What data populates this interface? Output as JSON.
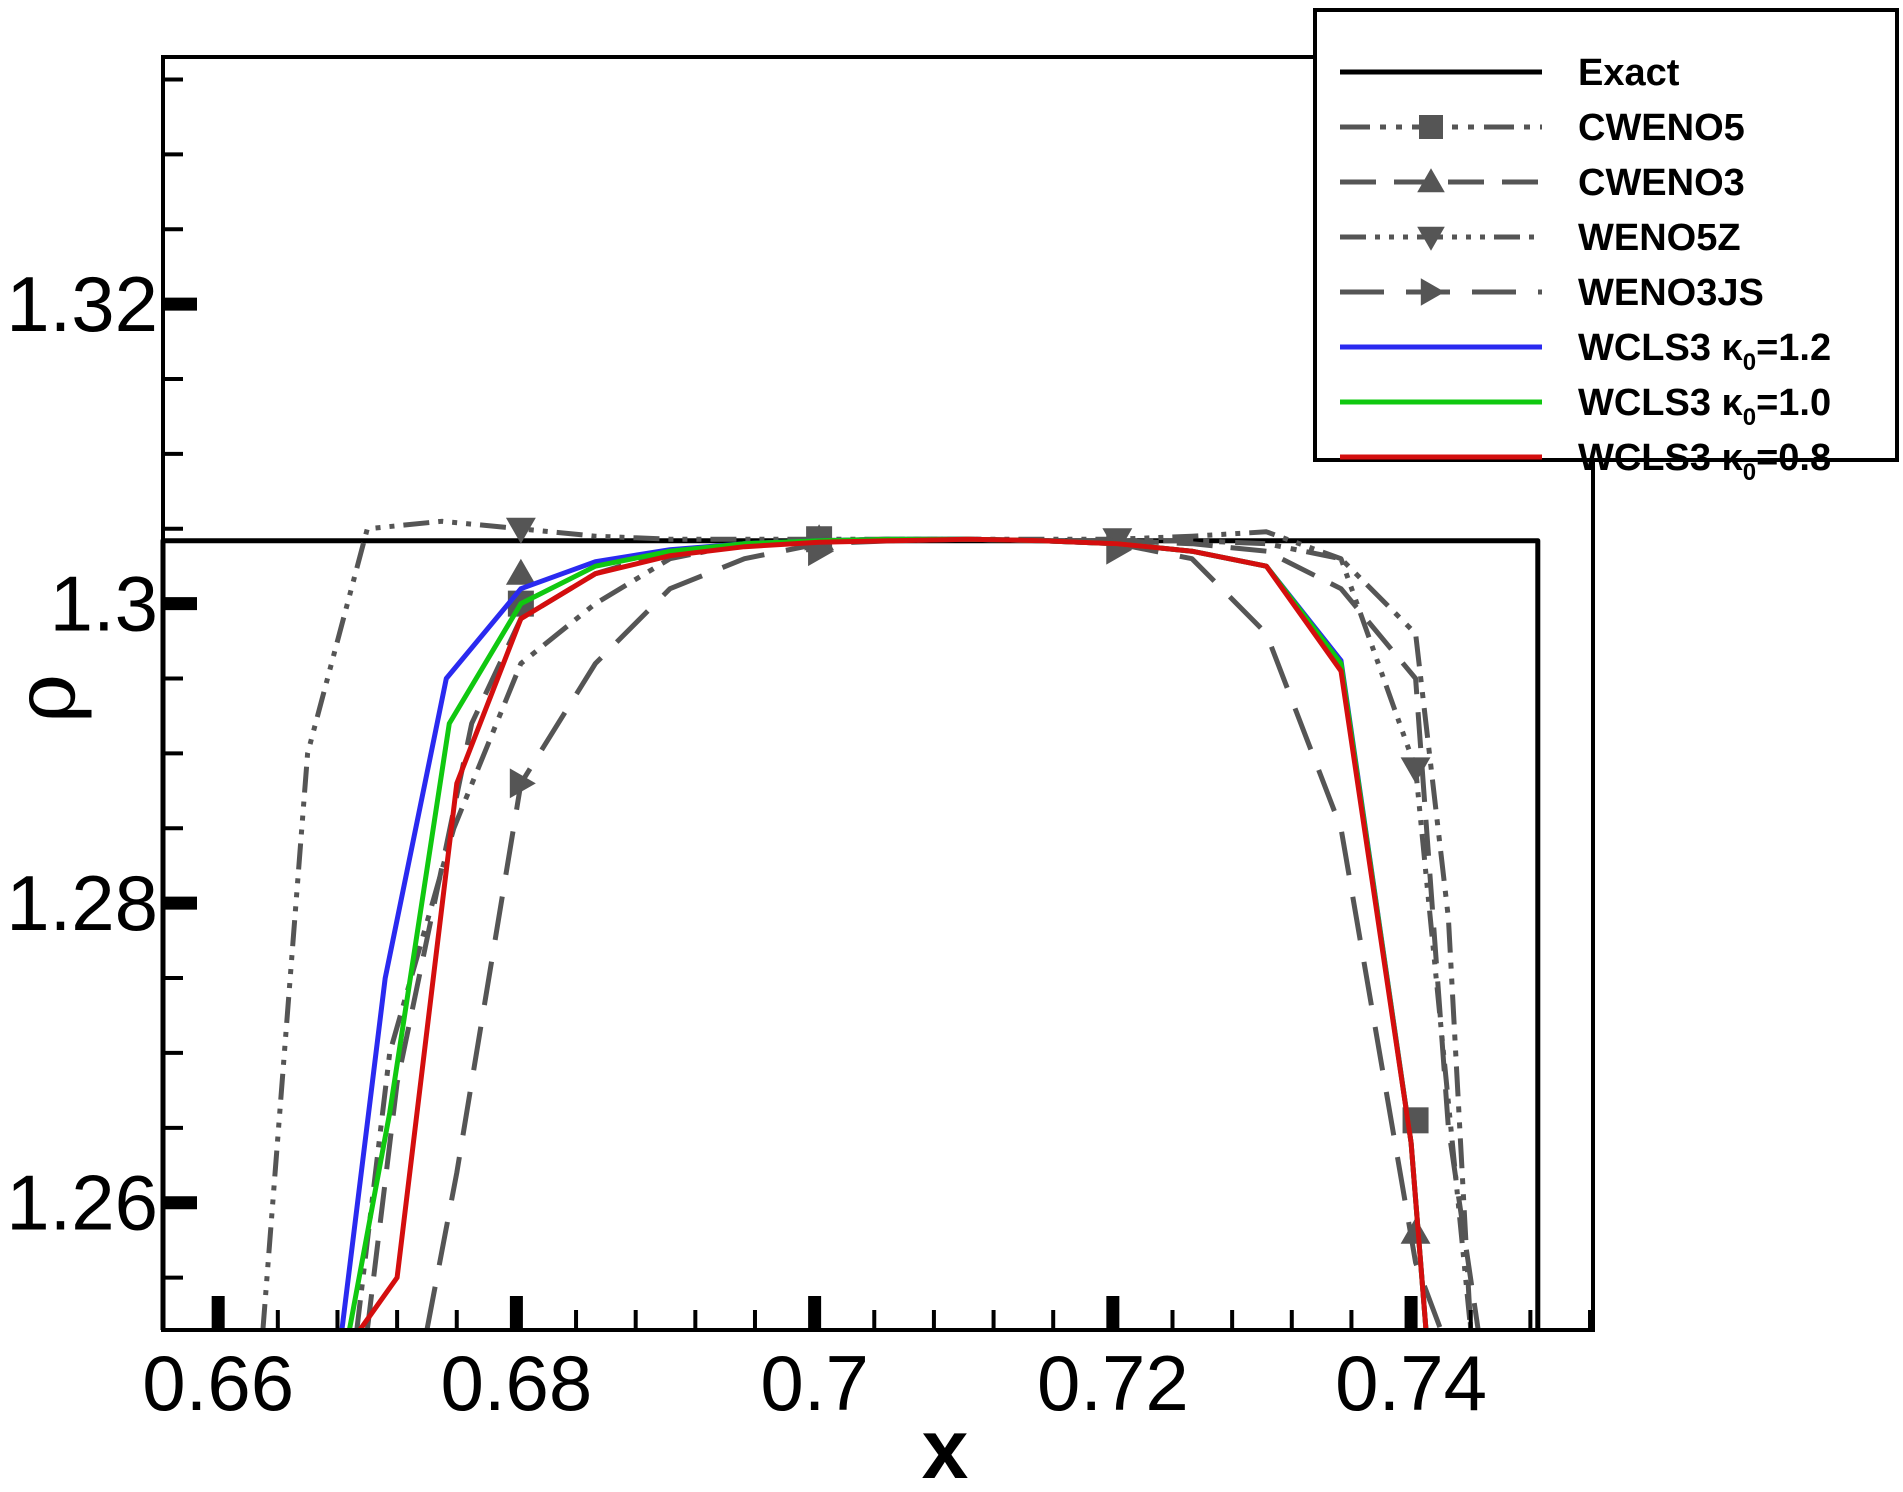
{
  "chart_data": {
    "type": "line",
    "title": "",
    "xlabel": "x",
    "ylabel": "ρ",
    "xlim": [
      0.6563,
      0.7522
    ],
    "ylim": [
      1.2515,
      1.3365
    ],
    "x_ticks": [
      0.66,
      0.68,
      0.7,
      0.72,
      0.74
    ],
    "x_tick_labels": [
      "0.66",
      "0.68",
      "0.7",
      "0.72",
      "0.74"
    ],
    "y_ticks": [
      1.26,
      1.28,
      1.3,
      1.32
    ],
    "y_tick_labels": [
      "1.26",
      "1.28",
      "1.3",
      "1.32"
    ],
    "legend_position": "top-right",
    "series": [
      {
        "name": "Exact",
        "label_main": "Exact",
        "label_sub": "",
        "label_tail": "",
        "color": "#000000",
        "dash": "solid",
        "marker": "none",
        "x": [
          0.6563,
          0.6563,
          0.7485,
          0.7485
        ],
        "y": [
          1.2515,
          1.3042,
          1.3042,
          1.2515
        ]
      },
      {
        "name": "CWENO5",
        "label_main": "CWENO5",
        "label_sub": "",
        "label_tail": "",
        "color": "#555555",
        "dash": "dashdotdot",
        "marker": "square",
        "x": [
          0.6693,
          0.6715,
          0.6758,
          0.6803,
          0.6853,
          0.6903,
          0.6953,
          0.7003,
          0.7053,
          0.7103,
          0.7153,
          0.7203,
          0.7253,
          0.7303,
          0.7353,
          0.7403,
          0.7425,
          0.744
        ],
        "y": [
          1.2515,
          1.27,
          1.285,
          1.296,
          1.3,
          1.303,
          1.304,
          1.3042,
          1.3043,
          1.3043,
          1.3042,
          1.3042,
          1.3042,
          1.304,
          1.303,
          1.298,
          1.279,
          1.2515
        ],
        "marker_x": [
          0.6803,
          0.7003,
          0.7403
        ],
        "marker_y": [
          1.3,
          1.3043,
          1.2655
        ]
      },
      {
        "name": "CWENO3",
        "label_main": "CWENO3",
        "label_sub": "",
        "label_tail": "",
        "color": "#555555",
        "dash": "dash",
        "marker": "triangle-up",
        "x": [
          0.67,
          0.672,
          0.677,
          0.6803,
          0.6853,
          0.6903,
          0.6953,
          0.7003,
          0.7053,
          0.7103,
          0.7153,
          0.7203,
          0.7253,
          0.7303,
          0.7353,
          0.7403,
          0.7425,
          0.7445
        ],
        "y": [
          1.2515,
          1.268,
          1.292,
          1.299,
          1.302,
          1.3035,
          1.304,
          1.3042,
          1.3043,
          1.3043,
          1.3042,
          1.3042,
          1.304,
          1.3035,
          1.301,
          1.295,
          1.265,
          1.2515
        ],
        "marker_x": [
          0.6803,
          0.7003,
          0.7403
        ],
        "marker_y": [
          1.302,
          1.3043,
          1.258
        ]
      },
      {
        "name": "WENO5Z",
        "label_main": "WENO5Z",
        "label_sub": "",
        "label_tail": "",
        "color": "#555555",
        "dash": "dashdotdotdot",
        "marker": "triangle-down",
        "x": [
          0.663,
          0.666,
          0.67,
          0.675,
          0.6803,
          0.6853,
          0.6903,
          0.6953,
          0.7003,
          0.7053,
          0.7103,
          0.7153,
          0.7203,
          0.7253,
          0.7303,
          0.7353,
          0.7403,
          0.744
        ],
        "y": [
          1.2515,
          1.29,
          1.305,
          1.3055,
          1.305,
          1.3045,
          1.3043,
          1.3043,
          1.3043,
          1.3043,
          1.3043,
          1.3043,
          1.3043,
          1.3045,
          1.3048,
          1.303,
          1.289,
          1.2515
        ],
        "marker_x": [
          0.6803,
          0.7203,
          0.7403
        ],
        "marker_y": [
          1.305,
          1.3043,
          1.289
        ]
      },
      {
        "name": "WENO3JS",
        "label_main": "WENO3JS",
        "label_sub": "",
        "label_tail": "",
        "color": "#555555",
        "dash": "longdash",
        "marker": "triangle-right",
        "x": [
          0.674,
          0.676,
          0.6803,
          0.6853,
          0.6903,
          0.6953,
          0.7003,
          0.7053,
          0.7103,
          0.7153,
          0.7203,
          0.7253,
          0.7303,
          0.7353,
          0.7403,
          0.742
        ],
        "y": [
          1.2515,
          1.262,
          1.288,
          1.296,
          1.301,
          1.303,
          1.304,
          1.3042,
          1.3043,
          1.3042,
          1.304,
          1.303,
          1.298,
          1.285,
          1.256,
          1.2515
        ],
        "marker_x": [
          0.6803,
          0.7003,
          0.7203
        ],
        "marker_y": [
          1.288,
          1.3035,
          1.3036
        ]
      },
      {
        "name": "WCLS3 κ0=1.2",
        "label_main": "WCLS3 κ",
        "label_sub": "0",
        "label_tail": "=1.2",
        "color": "#2a2af0",
        "dash": "solid",
        "marker": "none",
        "x": [
          0.6683,
          0.6712,
          0.6753,
          0.6803,
          0.6853,
          0.6903,
          0.6953,
          0.7003,
          0.7053,
          0.7103,
          0.7153,
          0.7203,
          0.7253,
          0.7303,
          0.7353,
          0.74,
          0.741
        ],
        "y": [
          1.2515,
          1.275,
          1.295,
          1.301,
          1.3028,
          1.3036,
          1.304,
          1.3042,
          1.3043,
          1.3043,
          1.3042,
          1.304,
          1.3035,
          1.3025,
          1.2962,
          1.264,
          1.2515
        ]
      },
      {
        "name": "WCLS3 κ0=1.0",
        "label_main": "WCLS3 κ",
        "label_sub": "0",
        "label_tail": "=1.0",
        "color": "#10c810",
        "dash": "solid",
        "marker": "none",
        "x": [
          0.6688,
          0.6715,
          0.6755,
          0.6803,
          0.6853,
          0.6903,
          0.6953,
          0.7003,
          0.7053,
          0.7103,
          0.7153,
          0.7203,
          0.7253,
          0.7303,
          0.7353,
          0.74,
          0.741
        ],
        "y": [
          1.2515,
          1.266,
          1.292,
          1.3,
          1.3025,
          1.3035,
          1.304,
          1.3042,
          1.3043,
          1.3043,
          1.3042,
          1.304,
          1.3035,
          1.3025,
          1.296,
          1.264,
          1.2515
        ]
      },
      {
        "name": "WCLS3 κ0=0.8",
        "label_main": "WCLS3 κ",
        "label_sub": "0",
        "label_tail": "=0.8",
        "color": "#d40e0e",
        "dash": "solid",
        "marker": "none",
        "x": [
          0.6695,
          0.672,
          0.676,
          0.6803,
          0.6853,
          0.6903,
          0.6953,
          0.7003,
          0.7053,
          0.7103,
          0.7153,
          0.7203,
          0.7253,
          0.7303,
          0.7353,
          0.74,
          0.741
        ],
        "y": [
          1.2515,
          1.255,
          1.288,
          1.299,
          1.302,
          1.3032,
          1.3038,
          1.3041,
          1.3042,
          1.3043,
          1.3042,
          1.304,
          1.3035,
          1.3025,
          1.2955,
          1.264,
          1.2515
        ]
      }
    ]
  }
}
